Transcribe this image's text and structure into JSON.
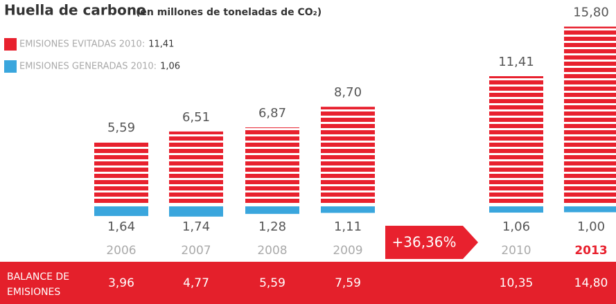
{
  "chart_data": {
    "type": "bar",
    "title": "Huella de carbono",
    "subtitle": "(en millones de toneladas de CO₂)",
    "categories": [
      "2006",
      "2007",
      "2008",
      "2009",
      "2010",
      "2013"
    ],
    "highlighted_category": "2013",
    "series": [
      {
        "name": "EMISIONES EVITADAS 2010:",
        "color": "#e8212e",
        "values": [
          5.59,
          6.51,
          6.87,
          8.7,
          11.41,
          15.8
        ],
        "value_labels": [
          "5,59",
          "6,51",
          "6,87",
          "8,70",
          "11,41",
          "15,80"
        ]
      },
      {
        "name": "EMISIONES GENERADAS 2010:",
        "color": "#3aa6dd",
        "values": [
          1.64,
          1.74,
          1.28,
          1.11,
          1.06,
          1.0
        ],
        "value_labels": [
          "1,64",
          "1,74",
          "1,28",
          "1,11",
          "1,06",
          "1,00"
        ]
      }
    ],
    "annotation": "+36,36%",
    "balance": {
      "label": "BALANCE DE EMISIONES",
      "values": [
        3.96,
        4.77,
        5.59,
        7.59,
        10.35,
        14.8
      ],
      "value_labels": [
        "3,96",
        "4,77",
        "5,59",
        "7,59",
        "10,35",
        "14,80"
      ],
      "color": "#e4202b"
    }
  }
}
